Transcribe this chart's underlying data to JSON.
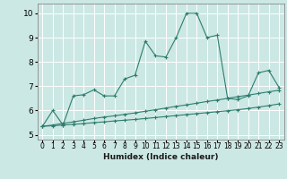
{
  "xlabel": "Humidex (Indice chaleur)",
  "background_color": "#cce8e4",
  "grid_color": "#ffffff",
  "line_color": "#2e7d6e",
  "xlim": [
    -0.5,
    23.5
  ],
  "ylim": [
    4.8,
    10.4
  ],
  "yticks": [
    5,
    6,
    7,
    8,
    9,
    10
  ],
  "xticks": [
    0,
    1,
    2,
    3,
    4,
    5,
    6,
    7,
    8,
    9,
    10,
    11,
    12,
    13,
    14,
    15,
    16,
    17,
    18,
    19,
    20,
    21,
    22,
    23
  ],
  "line1_x": [
    0,
    1,
    2,
    3,
    4,
    5,
    6,
    7,
    8,
    9,
    10,
    11,
    12,
    13,
    14,
    15,
    16,
    17,
    18,
    19,
    20,
    21,
    22,
    23
  ],
  "line1_y": [
    5.35,
    6.0,
    5.4,
    6.6,
    6.65,
    6.85,
    6.6,
    6.6,
    7.3,
    7.45,
    8.85,
    8.25,
    8.2,
    9.0,
    10.0,
    10.0,
    9.0,
    9.1,
    6.5,
    6.45,
    6.6,
    7.55,
    7.65,
    6.95
  ],
  "line2_x": [
    0,
    1,
    2,
    3,
    4,
    5,
    6,
    7,
    8,
    9,
    10,
    11,
    12,
    13,
    14,
    15,
    16,
    17,
    18,
    19,
    20,
    21,
    22,
    23
  ],
  "line2_y": [
    5.35,
    5.4,
    5.47,
    5.53,
    5.6,
    5.67,
    5.73,
    5.78,
    5.84,
    5.9,
    5.97,
    6.03,
    6.1,
    6.17,
    6.23,
    6.3,
    6.37,
    6.43,
    6.5,
    6.57,
    6.63,
    6.7,
    6.77,
    6.83
  ],
  "line3_x": [
    0,
    1,
    2,
    3,
    4,
    5,
    6,
    7,
    8,
    9,
    10,
    11,
    12,
    13,
    14,
    15,
    16,
    17,
    18,
    19,
    20,
    21,
    22,
    23
  ],
  "line3_y": [
    5.35,
    5.37,
    5.4,
    5.43,
    5.46,
    5.5,
    5.53,
    5.57,
    5.6,
    5.63,
    5.67,
    5.71,
    5.75,
    5.79,
    5.83,
    5.87,
    5.91,
    5.95,
    5.99,
    6.03,
    6.08,
    6.14,
    6.2,
    6.27
  ]
}
